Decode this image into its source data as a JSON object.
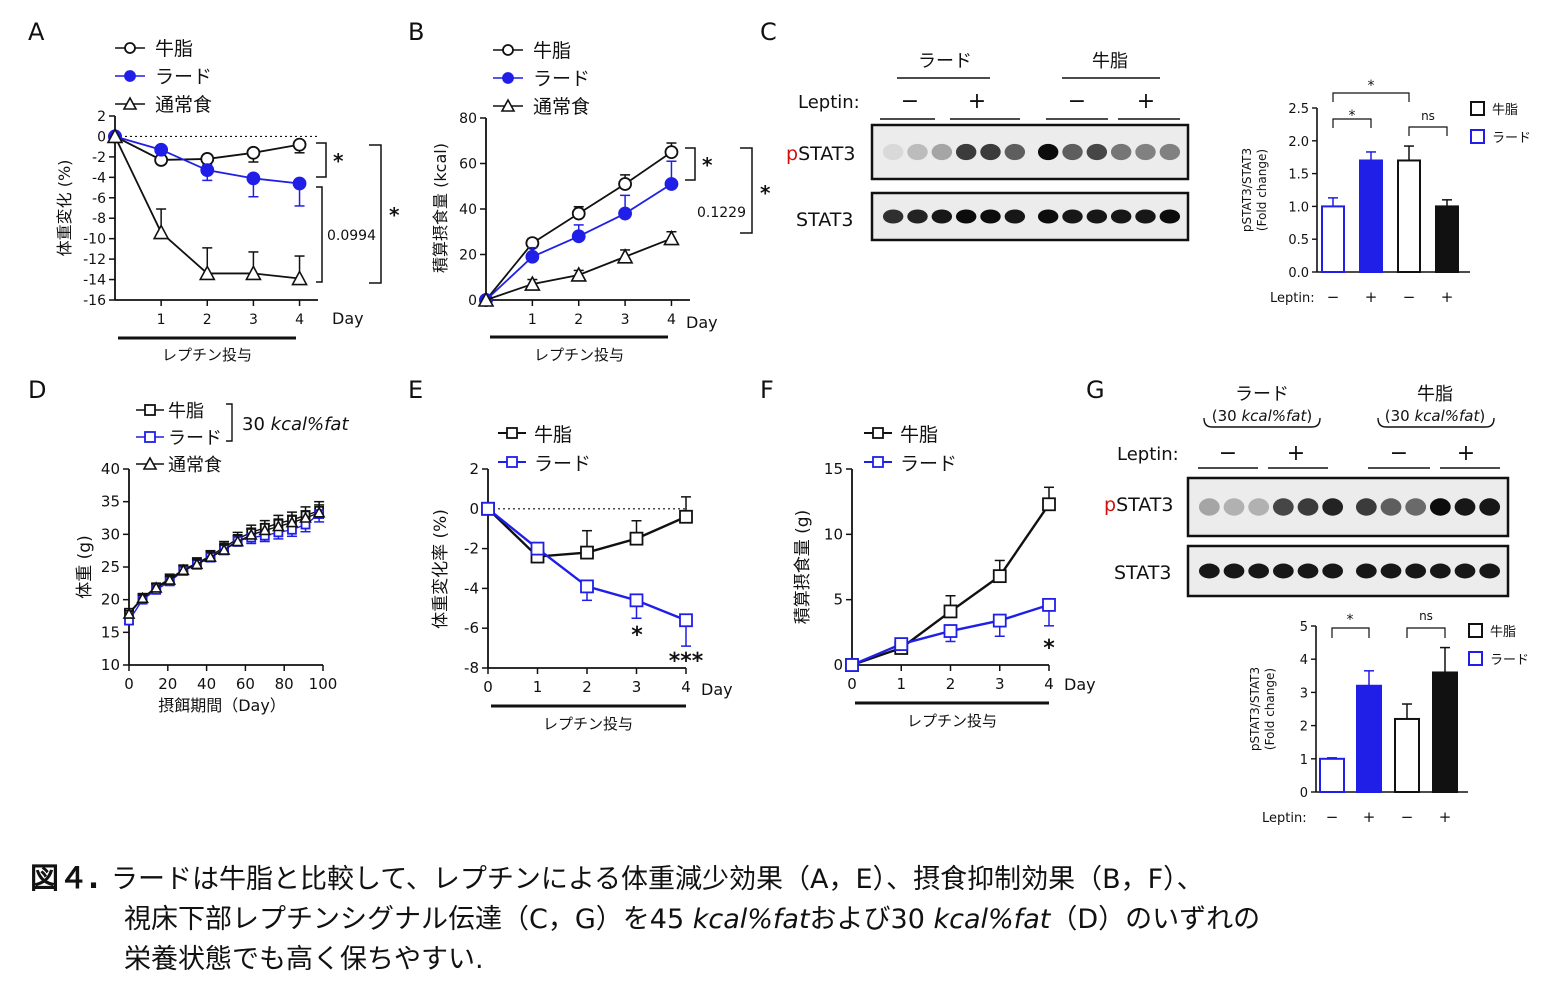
{
  "panels": {
    "A": {
      "letter": "A",
      "legend": [
        "牛脂",
        "ラード",
        "通常食"
      ],
      "ylabel": "体重変化 (%)",
      "xunit": "Day",
      "treatment": "レプチン投与",
      "sig_near": "*",
      "sig_mid": "0.0994",
      "sig_far": "*"
    },
    "B": {
      "letter": "B",
      "legend": [
        "牛脂",
        "ラード",
        "通常食"
      ],
      "ylabel": "積算摂食量 (kcal)",
      "xunit": "Day",
      "treatment": "レプチン投与",
      "sig_near": "*",
      "sig_mid": "0.1229",
      "sig_far": "*"
    },
    "C": {
      "letter": "C",
      "group1": "ラード",
      "group2": "牛脂",
      "leptin_label": "Leptin:",
      "minus": "−",
      "plus": "+",
      "band1_prefix": "p",
      "band1": "STAT3",
      "band2": "STAT3",
      "bar_ylabel1": "pSTAT3/STAT3",
      "bar_ylabel2": "(Fold change)",
      "legend": [
        "牛脂",
        "ラード"
      ],
      "sig_top": "*",
      "sig_left": "*",
      "sig_right": "ns"
    },
    "D": {
      "letter": "D",
      "legend": [
        "牛脂",
        "ラード",
        "通常食"
      ],
      "legend_note": "30",
      "legend_note_italic": "kcal%fat",
      "ylabel": "体重 (g)",
      "xlabel": "摂餌期間（Day）"
    },
    "E": {
      "letter": "E",
      "legend": [
        "牛脂",
        "ラード"
      ],
      "ylabel": "体重変化率 (%)",
      "xunit": "Day",
      "treatment": "レプチン投与",
      "sig_d3": "*",
      "sig_d4": "***"
    },
    "F": {
      "letter": "F",
      "legend": [
        "牛脂",
        "ラード"
      ],
      "ylabel": "積算摂食量 (g)",
      "xunit": "Day",
      "treatment": "レプチン投与",
      "sig_d4": "*"
    },
    "G": {
      "letter": "G",
      "group1": "ラード",
      "group2": "牛脂",
      "group_sub_pre": "(30 ",
      "group_sub_it": "kcal%fat",
      "group_sub_post": ")",
      "leptin_label": "Leptin:",
      "minus": "−",
      "plus": "+",
      "band1_prefix": "p",
      "band1": "STAT3",
      "band2": "STAT3",
      "bar_ylabel1": "pSTAT3/STAT3",
      "bar_ylabel2": "(Fold change)",
      "legend": [
        "牛脂",
        "ラード"
      ],
      "sig_left": "*",
      "sig_right": "ns"
    }
  },
  "chart_data": [
    {
      "id": "A",
      "type": "line",
      "x": [
        0,
        1,
        2,
        3,
        4
      ],
      "xlim": [
        0,
        4.4
      ],
      "xticks": [
        1,
        2,
        3,
        4
      ],
      "ylim": [
        -16,
        2
      ],
      "yticks": [
        2,
        0,
        -2,
        -4,
        -6,
        -8,
        -10,
        -12,
        -14,
        -16
      ],
      "series": [
        {
          "name": "牛脂",
          "values": [
            0,
            -2.3,
            -2.2,
            -1.6,
            -0.8
          ],
          "err": [
            0,
            0.3,
            0.6,
            0.9,
            0.8
          ]
        },
        {
          "name": "ラード",
          "values": [
            0,
            -1.3,
            -3.3,
            -4.1,
            -4.6
          ],
          "err": [
            0,
            0.4,
            1.0,
            1.8,
            2.2
          ]
        },
        {
          "name": "通常食",
          "values": [
            0,
            -9.4,
            -13.4,
            -13.4,
            -13.9
          ],
          "err": [
            0,
            2.3,
            2.5,
            2.1,
            2.2
          ]
        }
      ]
    },
    {
      "id": "B",
      "type": "line",
      "x": [
        0,
        1,
        2,
        3,
        4
      ],
      "xlim": [
        0,
        4.4
      ],
      "xticks": [
        1,
        2,
        3,
        4
      ],
      "ylim": [
        0,
        80
      ],
      "yticks": [
        0,
        20,
        40,
        60,
        80
      ],
      "series": [
        {
          "name": "牛脂",
          "values": [
            0,
            25,
            38,
            51,
            65
          ],
          "err": [
            0,
            2,
            3,
            4,
            4
          ]
        },
        {
          "name": "ラード",
          "values": [
            0,
            19,
            28,
            38,
            51
          ],
          "err": [
            0,
            4,
            5,
            8,
            10
          ]
        },
        {
          "name": "通常食",
          "values": [
            0,
            7,
            11,
            19,
            27
          ],
          "err": [
            0,
            2,
            2,
            3,
            3
          ]
        }
      ]
    },
    {
      "id": "C",
      "type": "bar",
      "categories": [
        "−",
        "+",
        "−",
        "+"
      ],
      "leptin": [
        "−",
        "+",
        "−",
        "+"
      ],
      "ylim": [
        0,
        2.5
      ],
      "yticks": [
        0.0,
        0.5,
        1.0,
        1.5,
        2.0,
        2.5
      ],
      "groups": [
        "ラード",
        "ラード",
        "牛脂",
        "牛脂"
      ],
      "values": [
        1.0,
        1.7,
        1.7,
        1.0
      ],
      "err": [
        0.13,
        0.13,
        0.22,
        0.1
      ]
    },
    {
      "id": "D",
      "type": "line",
      "xlim": [
        0,
        100
      ],
      "xticks": [
        0,
        20,
        40,
        60,
        80,
        100
      ],
      "ylim": [
        10,
        40
      ],
      "yticks": [
        10,
        15,
        20,
        25,
        30,
        35,
        40
      ],
      "series": [
        {
          "name": "牛脂",
          "x": [
            0,
            7,
            14,
            21,
            28,
            35,
            42,
            49,
            56,
            63,
            70,
            77,
            84,
            91,
            98
          ],
          "values": [
            18,
            20.3,
            21.9,
            23.2,
            24.6,
            25.6,
            26.7,
            28.0,
            29.3,
            30.3,
            31.0,
            31.7,
            32.2,
            32.9,
            33.6
          ],
          "err": [
            0.5,
            0.6,
            0.6,
            0.7,
            0.7,
            0.8,
            0.8,
            0.9,
            1.0,
            1.1,
            1.1,
            1.2,
            1.2,
            1.3,
            1.4
          ]
        },
        {
          "name": "ラード",
          "x": [
            0,
            7,
            14,
            21,
            28,
            35,
            42,
            49,
            56,
            63,
            70,
            77,
            84,
            91,
            98
          ],
          "values": [
            16.8,
            20.0,
            21.5,
            22.8,
            24.4,
            25.4,
            26.5,
            27.7,
            29.0,
            29.5,
            29.8,
            30.3,
            30.7,
            31.5,
            33.1
          ],
          "err": [
            0.5,
            0.5,
            0.5,
            0.6,
            0.6,
            0.7,
            0.7,
            0.8,
            0.8,
            0.9,
            0.9,
            1.0,
            1.0,
            1.1,
            1.2
          ]
        },
        {
          "name": "通常食",
          "x": [
            0,
            7,
            14,
            21,
            28,
            35,
            42,
            49,
            56,
            63,
            70,
            77,
            84,
            91,
            98
          ],
          "values": [
            17.8,
            20.2,
            21.8,
            23.0,
            24.5,
            25.4,
            26.5,
            27.6,
            28.9,
            29.9,
            30.6,
            31.2,
            31.8,
            32.5,
            33.3
          ],
          "err": [
            0.5,
            0.5,
            0.6,
            0.6,
            0.7,
            0.7,
            0.8,
            0.8,
            0.9,
            0.9,
            1.0,
            1.0,
            1.1,
            1.1,
            1.2
          ]
        }
      ]
    },
    {
      "id": "E",
      "type": "line",
      "x": [
        0,
        1,
        2,
        3,
        4
      ],
      "xlim": [
        0,
        4
      ],
      "xticks": [
        0,
        1,
        2,
        3,
        4
      ],
      "ylim": [
        -8,
        2
      ],
      "yticks": [
        2,
        0,
        -2,
        -4,
        -6,
        -8
      ],
      "series": [
        {
          "name": "牛脂",
          "values": [
            0,
            -2.4,
            -2.2,
            -1.5,
            -0.4
          ],
          "err": [
            0,
            0.3,
            1.1,
            0.9,
            1.0
          ]
        },
        {
          "name": "ラード",
          "values": [
            0,
            -2.0,
            -3.9,
            -4.6,
            -5.6
          ],
          "err": [
            0,
            0.3,
            0.7,
            0.9,
            1.3
          ]
        }
      ]
    },
    {
      "id": "F",
      "type": "line",
      "x": [
        0,
        1,
        2,
        3,
        4
      ],
      "xlim": [
        0,
        4
      ],
      "xticks": [
        0,
        1,
        2,
        3,
        4
      ],
      "ylim": [
        0,
        15
      ],
      "yticks": [
        0,
        5,
        10,
        15
      ],
      "series": [
        {
          "name": "牛脂",
          "values": [
            0,
            1.3,
            4.1,
            6.8,
            12.3
          ],
          "err": [
            0,
            0.3,
            1.2,
            1.2,
            1.3
          ]
        },
        {
          "name": "ラード",
          "values": [
            0,
            1.6,
            2.6,
            3.4,
            4.6
          ],
          "err": [
            0,
            0.3,
            0.8,
            1.2,
            1.6
          ]
        }
      ]
    },
    {
      "id": "G",
      "type": "bar",
      "categories": [
        "−",
        "+",
        "−",
        "+"
      ],
      "leptin": [
        "−",
        "+",
        "−",
        "+"
      ],
      "ylim": [
        0,
        5
      ],
      "yticks": [
        0,
        1,
        2,
        3,
        4,
        5
      ],
      "groups": [
        "ラード",
        "ラード",
        "牛脂",
        "牛脂"
      ],
      "values": [
        1.0,
        3.2,
        2.2,
        3.6
      ],
      "err": [
        0.03,
        0.45,
        0.45,
        0.75
      ]
    }
  ],
  "caption": {
    "label": "図４.",
    "line1": "ラードは牛脂と比較して、レプチンによる体重減少効果（A，E）、摂食抑制効果（B，F）、",
    "line2_a": "視床下部レプチンシグナル伝達（C，G）を45 ",
    "line2_it1": "kcal%fat",
    "line2_b": "および30 ",
    "line2_it2": "kcal%fat",
    "line2_c": "（D）のいずれの",
    "line3": "栄養状態でも高く保ちやすい."
  },
  "colors": {
    "blue": "#1f1fe8",
    "red": "#d01010",
    "black": "#111111"
  }
}
